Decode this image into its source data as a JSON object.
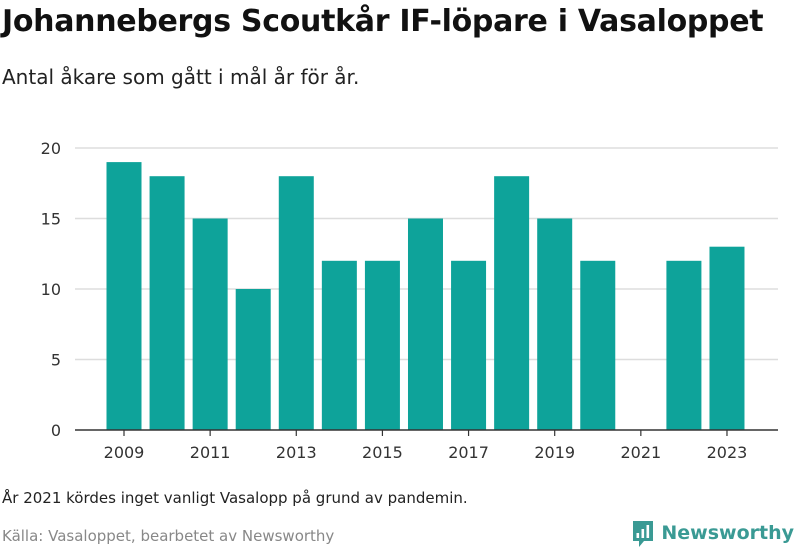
{
  "header": {
    "title": "Johannebergs Scoutkår IF-löpare i Vasaloppet",
    "subtitle": "Antal åkare som gått i mål år för år."
  },
  "footer": {
    "note": "År 2021 kördes inget vanligt Vasalopp på grund av pandemin.",
    "source": "Källa: Vasaloppet, bearbetet av Newsworthy",
    "brand": "Newsworthy"
  },
  "colors": {
    "bar": "#0ea39a",
    "grid": "#dddddd",
    "axis": "#333333",
    "brand": "#3a9a94"
  },
  "chart_data": {
    "type": "bar",
    "title": "Johannebergs Scoutkår IF-löpare i Vasaloppet",
    "subtitle": "Antal åkare som gått i mål år för år.",
    "xlabel": "",
    "ylabel": "",
    "categories": [
      "2009",
      "2010",
      "2011",
      "2012",
      "2013",
      "2014",
      "2015",
      "2016",
      "2017",
      "2018",
      "2019",
      "2020",
      "2021",
      "2022",
      "2023"
    ],
    "values": [
      19,
      18,
      15,
      10,
      18,
      12,
      12,
      15,
      12,
      18,
      15,
      12,
      null,
      12,
      13
    ],
    "x_tick_labels": [
      "2009",
      "2011",
      "2013",
      "2015",
      "2017",
      "2019",
      "2021",
      "2023"
    ],
    "y_ticks": [
      0,
      5,
      10,
      15,
      20
    ],
    "ylim": [
      0,
      20
    ],
    "grid": true,
    "legend": "none"
  }
}
